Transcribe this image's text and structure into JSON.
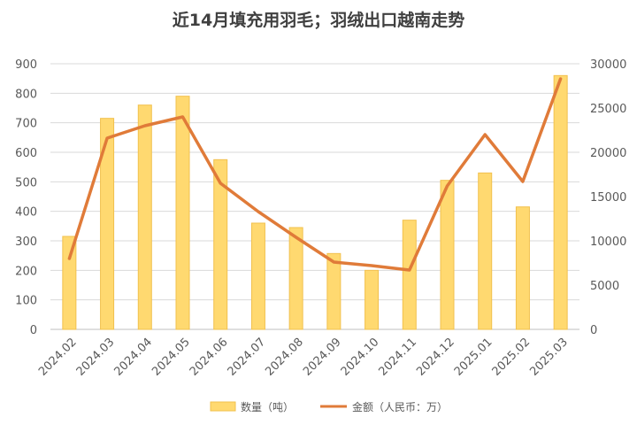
{
  "chart_data": {
    "type": "bar+line",
    "title": "近14月填充用羽毛；羽绒出口越南走势",
    "categories": [
      "2024.02",
      "2024.03",
      "2024.04",
      "2024.05",
      "2024.06",
      "2024.07",
      "2024.08",
      "2024.09",
      "2024.10",
      "2024.11",
      "2024.12",
      "2025.01",
      "2025.02",
      "2025.03"
    ],
    "series": [
      {
        "name": "数量（吨）",
        "type": "bar",
        "axis": "left",
        "color": "#FFD970",
        "border_color": "#F2C14E",
        "values": [
          315,
          715,
          760,
          790,
          575,
          360,
          345,
          257,
          200,
          370,
          505,
          530,
          415,
          860
        ]
      },
      {
        "name": "金额（人民币：万）",
        "type": "line",
        "axis": "right",
        "color": "#E07B39",
        "values": [
          8000,
          21600,
          23000,
          24000,
          16500,
          13300,
          10400,
          7600,
          7200,
          6700,
          16200,
          22000,
          16700,
          28300
        ]
      }
    ],
    "y_left": {
      "min": 0,
      "max": 900,
      "step": 100
    },
    "y_right": {
      "min": 0,
      "max": 30000,
      "step": 5000
    },
    "grid": true,
    "legend_position": "bottom"
  }
}
